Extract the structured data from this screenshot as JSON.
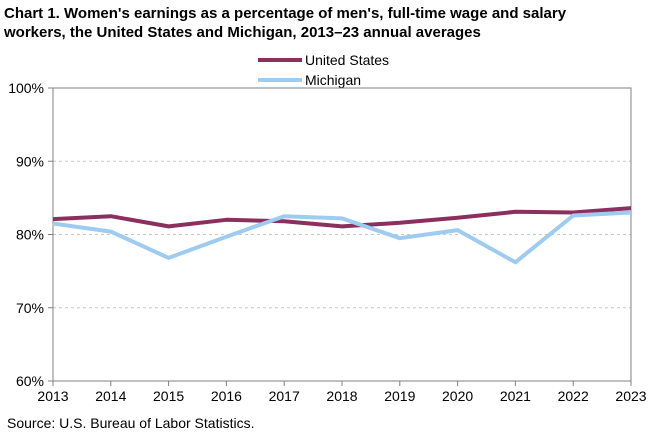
{
  "title_line1": "Chart 1. Women's earnings as a percentage of men's, full-time wage and salary",
  "title_line2": "workers, the United States and Michigan,  2013–23 annual averages",
  "source": "Source:  U.S. Bureau of Labor Statistics.",
  "chart_data": {
    "type": "line",
    "title": "Chart 1. Women's earnings as a percentage of men's, full-time wage and salary workers, the United States and Michigan,  2013–23 annual averages",
    "xlabel": "",
    "ylabel": "",
    "categories": [
      "2013",
      "2014",
      "2015",
      "2016",
      "2017",
      "2018",
      "2019",
      "2020",
      "2021",
      "2022",
      "2023"
    ],
    "ylim": [
      60,
      100
    ],
    "yticks": [
      "60%",
      "70%",
      "80%",
      "90%",
      "100%"
    ],
    "ytick_values": [
      60,
      70,
      80,
      90,
      100
    ],
    "grid": "horizontal dashed",
    "legend_position": "top-center",
    "series": [
      {
        "name": "United States",
        "color": "#8b2f5e",
        "values": [
          82.1,
          82.5,
          81.1,
          82.0,
          81.8,
          81.1,
          81.6,
          82.3,
          83.1,
          83.0,
          83.6
        ]
      },
      {
        "name": "Michigan",
        "color": "#9ecbf0",
        "values": [
          81.5,
          80.4,
          76.8,
          79.7,
          82.5,
          82.2,
          79.5,
          80.6,
          76.2,
          82.6,
          83.0
        ]
      }
    ]
  }
}
